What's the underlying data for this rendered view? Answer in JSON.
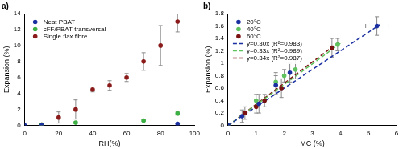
{
  "chart_data": [
    {
      "type": "scatter",
      "title": "a)",
      "x_label": "RH(%)",
      "y_label": "Expansion (%)",
      "xlim": [
        0,
        100
      ],
      "xticks": [
        0,
        20,
        40,
        60,
        80,
        100
      ],
      "ylim": [
        0,
        14
      ],
      "yticks": [
        0,
        2,
        4,
        6,
        8,
        10,
        12,
        14
      ],
      "grid": false,
      "legend": "upper left",
      "series": [
        {
          "name": "Neat PBAT",
          "color": "#1a2fa0",
          "marker": "circle",
          "x": [
            0,
            10,
            90
          ],
          "values": [
            0,
            0,
            0.2
          ],
          "errors": [
            null,
            null,
            null
          ]
        },
        {
          "name": "cFF/PBAT transversal",
          "color": "#3cb043",
          "marker": "circle",
          "x": [
            10,
            30,
            70,
            90
          ],
          "values": [
            0.1,
            0.35,
            0.6,
            1.5
          ],
          "errors": [
            null,
            0.1,
            0.1,
            0.2
          ]
        },
        {
          "name": "Single flax fibre",
          "color": "#8b1a1a",
          "marker": "circle",
          "x": [
            10,
            20,
            30,
            40,
            50,
            60,
            70,
            80,
            90
          ],
          "values": [
            0.1,
            1.0,
            2.0,
            4.5,
            5.0,
            6.0,
            8.0,
            10.0,
            13.0
          ],
          "errors": [
            0.1,
            0.7,
            1.2,
            0.3,
            0.6,
            0.5,
            1.1,
            2.5,
            1.3
          ]
        }
      ]
    },
    {
      "type": "scatter",
      "title": "b)",
      "x_label": "MC (%)",
      "y_label": "Expansion (%)",
      "xlim": [
        0,
        6
      ],
      "xticks": [
        0,
        1,
        2,
        3,
        4,
        5,
        6
      ],
      "ylim": [
        0,
        1.8
      ],
      "yticks": [
        0,
        0.2,
        0.4,
        0.6,
        0.8,
        1,
        1.2,
        1.4,
        1.6,
        1.8
      ],
      "grid": false,
      "legend": "upper left",
      "series": [
        {
          "name": "20°C",
          "color": "#1a2fa0",
          "marker": "circle",
          "x": [
            0,
            0.5,
            1.1,
            1.7,
            2.2,
            5.3
          ],
          "values": [
            0,
            0.15,
            0.35,
            0.65,
            0.85,
            1.6
          ],
          "errors": [
            null,
            0.1,
            0.15,
            0.15,
            0.15,
            0.15
          ],
          "x_errors": [
            null,
            null,
            null,
            null,
            null,
            0.4
          ]
        },
        {
          "name": "40°C",
          "color": "#5ec25e",
          "marker": "circle",
          "x": [
            0,
            1.0,
            1.7,
            2.0,
            2.4,
            3.9
          ],
          "values": [
            0,
            0.4,
            0.7,
            0.8,
            0.9,
            1.3
          ],
          "errors": [
            null,
            0.1,
            0.15,
            0.1,
            0.15,
            0.1
          ],
          "x_errors": [
            null,
            null,
            null,
            null,
            null,
            null
          ]
        },
        {
          "name": "60°C",
          "color": "#7a1212",
          "marker": "circle",
          "x": [
            0,
            0.6,
            1.0,
            1.3,
            1.9,
            3.7
          ],
          "values": [
            0,
            0.2,
            0.3,
            0.4,
            0.6,
            1.25
          ],
          "errors": [
            null,
            0.1,
            0.1,
            0.1,
            0.15,
            0.15
          ],
          "x_errors": [
            null,
            null,
            null,
            null,
            null,
            null
          ]
        },
        {
          "name": "y=0.30x (R²=0.983)",
          "type": "line",
          "line_style": "dashed",
          "color": "#1a2fa0",
          "x": [
            0,
            5.4
          ],
          "values": [
            0,
            1.62
          ]
        },
        {
          "name": "y=0.33x (R²=0.989)",
          "type": "line",
          "line_style": "dashed",
          "color": "#5ec25e",
          "x": [
            0,
            4
          ],
          "values": [
            0,
            1.32
          ]
        },
        {
          "name": "y=0.34x (R²=0.987)",
          "type": "line",
          "line_style": "dashed",
          "color": "#7a1212",
          "x": [
            0,
            4
          ],
          "values": [
            0,
            1.36
          ]
        }
      ]
    }
  ]
}
